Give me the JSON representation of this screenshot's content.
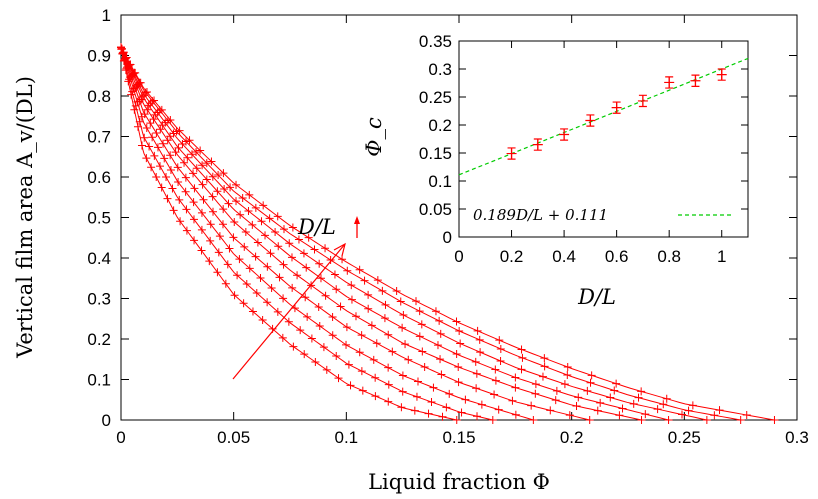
{
  "chart_data": [
    {
      "type": "line",
      "subtype": "scatter-with-lines",
      "xlabel": "Liquid fraction Φ",
      "ylabel": "Vertical film area A_v/(DL)",
      "xlim": [
        0,
        0.3
      ],
      "ylim": [
        0,
        1
      ],
      "xticks": [
        "0",
        "0.05",
        "0.1",
        "0.15",
        "0.2",
        "0.25",
        "0.3"
      ],
      "yticks": [
        "0",
        "0.1",
        "0.2",
        "0.3",
        "0.4",
        "0.5",
        "0.6",
        "0.7",
        "0.8",
        "0.9",
        "1"
      ],
      "annotation": "D/L",
      "annotation_arrow": "D/L increasing",
      "marker": "+",
      "color": "#ff0000",
      "grid": false,
      "series": [
        {
          "phi_c": 0.149,
          "x": [
            0,
            0.01,
            0.025,
            0.05,
            0.075,
            0.1,
            0.125,
            0.149
          ],
          "y": [
            0.92,
            0.66,
            0.5,
            0.31,
            0.187,
            0.09,
            0.03,
            0.0
          ]
        },
        {
          "phi_c": 0.165,
          "x": [
            0,
            0.01,
            0.025,
            0.05,
            0.075,
            0.1,
            0.125,
            0.15,
            0.165
          ],
          "y": [
            0.92,
            0.7,
            0.55,
            0.365,
            0.24,
            0.14,
            0.07,
            0.02,
            0.0
          ]
        },
        {
          "phi_c": 0.183,
          "x": [
            0,
            0.01,
            0.025,
            0.05,
            0.075,
            0.1,
            0.125,
            0.15,
            0.183
          ],
          "y": [
            0.92,
            0.735,
            0.59,
            0.41,
            0.285,
            0.185,
            0.11,
            0.055,
            0.0
          ]
        },
        {
          "phi_c": 0.208,
          "x": [
            0,
            0.01,
            0.025,
            0.05,
            0.075,
            0.1,
            0.125,
            0.15,
            0.175,
            0.208
          ],
          "y": [
            0.92,
            0.76,
            0.625,
            0.45,
            0.33,
            0.23,
            0.155,
            0.093,
            0.045,
            0.0
          ]
        },
        {
          "phi_c": 0.231,
          "x": [
            0,
            0.01,
            0.025,
            0.05,
            0.075,
            0.1,
            0.125,
            0.15,
            0.175,
            0.2,
            0.231
          ],
          "y": [
            0.92,
            0.78,
            0.655,
            0.49,
            0.37,
            0.27,
            0.19,
            0.13,
            0.08,
            0.037,
            0.0
          ]
        },
        {
          "phi_c": 0.243,
          "x": [
            0,
            0.01,
            0.025,
            0.05,
            0.075,
            0.1,
            0.125,
            0.15,
            0.175,
            0.2,
            0.243
          ],
          "y": [
            0.92,
            0.795,
            0.675,
            0.52,
            0.405,
            0.305,
            0.227,
            0.16,
            0.105,
            0.06,
            0.0
          ]
        },
        {
          "phi_c": 0.26,
          "x": [
            0,
            0.01,
            0.025,
            0.05,
            0.075,
            0.1,
            0.125,
            0.15,
            0.175,
            0.2,
            0.225,
            0.26
          ],
          "y": [
            0.92,
            0.805,
            0.695,
            0.545,
            0.435,
            0.34,
            0.26,
            0.19,
            0.13,
            0.083,
            0.043,
            0.0
          ]
        },
        {
          "phi_c": 0.275,
          "x": [
            0,
            0.01,
            0.025,
            0.05,
            0.075,
            0.1,
            0.125,
            0.15,
            0.175,
            0.2,
            0.225,
            0.25,
            0.275
          ],
          "y": [
            0.92,
            0.815,
            0.71,
            0.565,
            0.46,
            0.37,
            0.29,
            0.22,
            0.16,
            0.107,
            0.062,
            0.025,
            0.0
          ]
        },
        {
          "phi_c": 0.29,
          "x": [
            0,
            0.01,
            0.025,
            0.05,
            0.075,
            0.1,
            0.125,
            0.15,
            0.175,
            0.2,
            0.225,
            0.25,
            0.29
          ],
          "y": [
            0.92,
            0.82,
            0.72,
            0.585,
            0.48,
            0.39,
            0.31,
            0.24,
            0.18,
            0.127,
            0.08,
            0.04,
            0.0
          ]
        }
      ]
    },
    {
      "type": "scatter",
      "subtype": "errorbar-with-fit",
      "xlabel": "D/L",
      "ylabel": "Φ_c",
      "xlim": [
        0,
        1.1
      ],
      "ylim": [
        0,
        0.35
      ],
      "xticks": [
        "0",
        "0.2",
        "0.4",
        "0.6",
        "0.8",
        "1"
      ],
      "yticks": [
        "0",
        "0.05",
        "0.1",
        "0.15",
        "0.2",
        "0.25",
        "0.3",
        "0.35"
      ],
      "x": [
        0.2,
        0.3,
        0.4,
        0.5,
        0.6,
        0.7,
        0.8,
        0.9,
        1.0
      ],
      "y": [
        0.149,
        0.165,
        0.183,
        0.208,
        0.231,
        0.243,
        0.276,
        0.279,
        0.29
      ],
      "yerr": [
        0.01,
        0.01,
        0.01,
        0.01,
        0.01,
        0.01,
        0.01,
        0.01,
        0.01
      ],
      "marker_color": "#ff0000",
      "fit": {
        "slope": 0.189,
        "intercept": 0.111,
        "label": "0.189D/L + 0.111",
        "color": "#00cc00",
        "style": "dashed"
      },
      "legend_position": "bottom-right",
      "grid": false
    }
  ]
}
